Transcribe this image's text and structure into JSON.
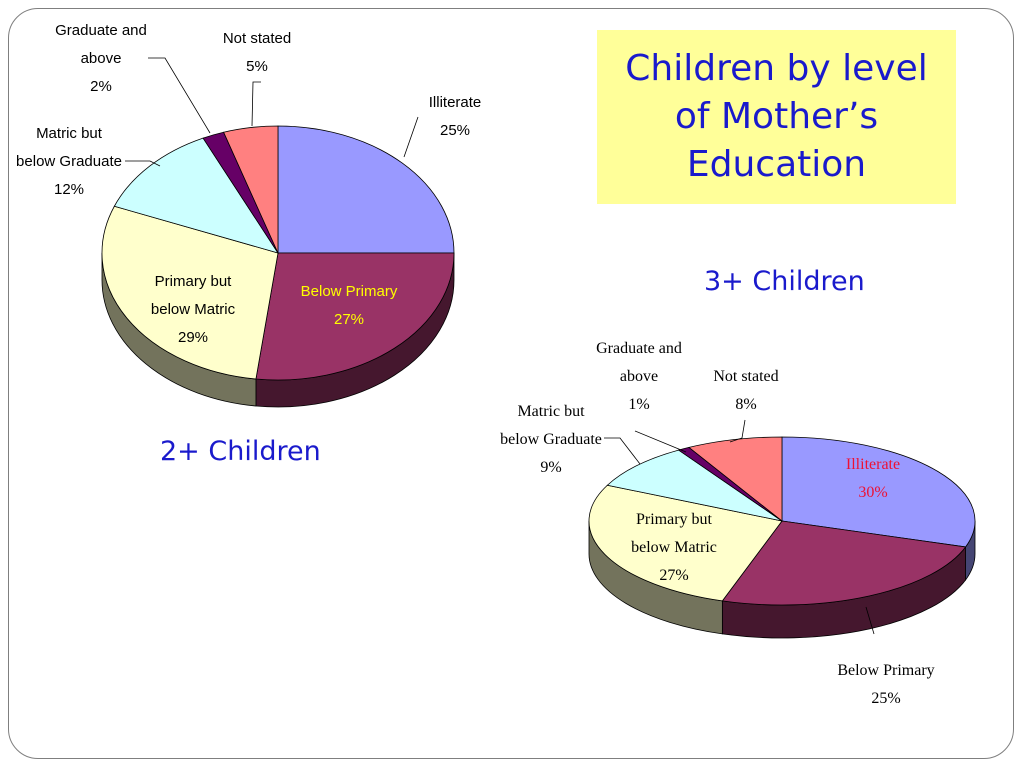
{
  "title": "Children by level of Mother’s Education",
  "chart_data": [
    {
      "type": "pie",
      "title": "2+ Children",
      "slices": [
        {
          "label": "Illiterate",
          "value": 25,
          "pct": "25%",
          "color": "#9999ff"
        },
        {
          "label": "Below Primary",
          "value": 27,
          "pct": "27%",
          "color": "#993366"
        },
        {
          "label": "Primary but below Matric",
          "value": 29,
          "pct": "29%",
          "color": "#ffffcc"
        },
        {
          "label": "Matric but below Graduate",
          "value": 12,
          "pct": "12%",
          "color": "#ccffff"
        },
        {
          "label": "Graduate and above",
          "value": 2,
          "pct": "2%",
          "color": "#660066"
        },
        {
          "label": "Not stated",
          "value": 5,
          "pct": "5%",
          "color": "#ff8080"
        }
      ]
    },
    {
      "type": "pie",
      "title": "3+ Children",
      "slices": [
        {
          "label": "Illiterate",
          "value": 30,
          "pct": "30%",
          "color": "#9999ff"
        },
        {
          "label": "Below Primary",
          "value": 25,
          "pct": "25%",
          "color": "#993366"
        },
        {
          "label": "Primary but below Matric",
          "value": 27,
          "pct": "27%",
          "color": "#ffffcc"
        },
        {
          "label": "Matric but below Graduate",
          "value": 9,
          "pct": "9%",
          "color": "#ccffff"
        },
        {
          "label": "Graduate and above",
          "value": 1,
          "pct": "1%",
          "color": "#660066"
        },
        {
          "label": "Not stated",
          "value": 8,
          "pct": "8%",
          "color": "#ff8080"
        }
      ]
    }
  ]
}
